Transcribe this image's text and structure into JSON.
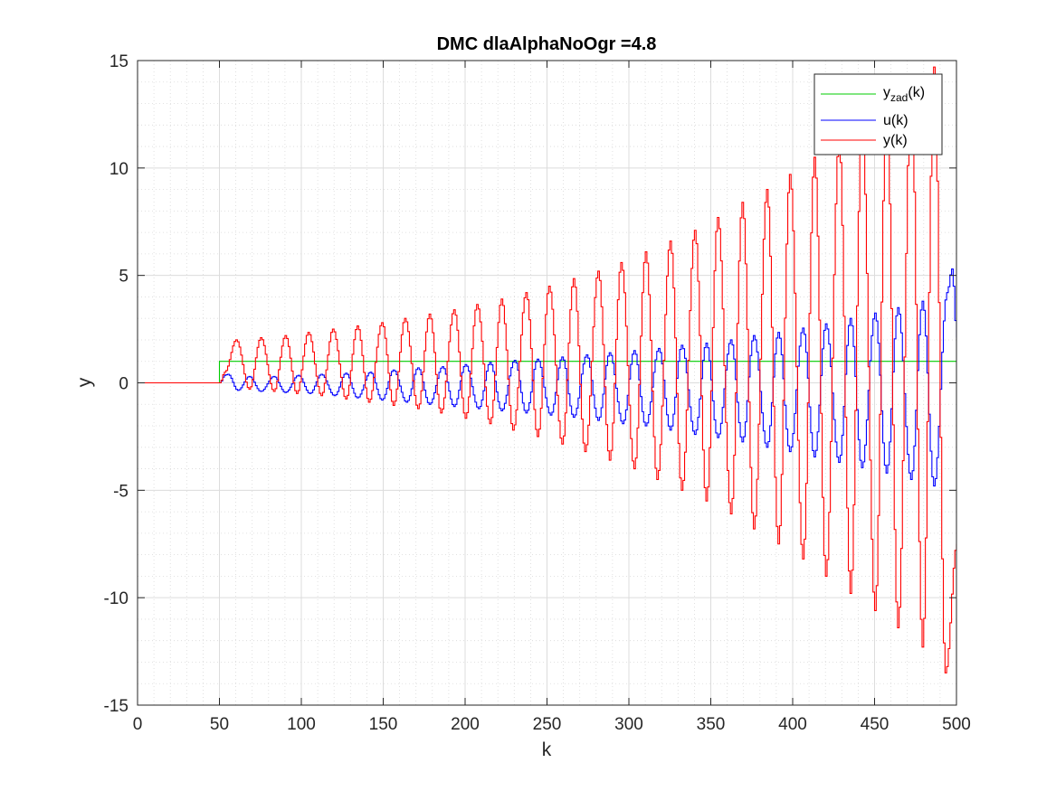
{
  "chart_data": {
    "type": "line",
    "title": "DMC dlaAlphaNoOgr =4.8",
    "xlabel": "k",
    "ylabel": "y",
    "xlim": [
      0,
      500
    ],
    "ylim": [
      -15,
      15
    ],
    "xticks": [
      0,
      50,
      100,
      150,
      200,
      250,
      300,
      350,
      400,
      450,
      500
    ],
    "yticks": [
      -15,
      -10,
      -5,
      0,
      5,
      10,
      15
    ],
    "xticklabels": [
      "0",
      "50",
      "100",
      "150",
      "200",
      "250",
      "300",
      "350",
      "400",
      "450",
      "500"
    ],
    "yticklabels": [
      "-15",
      "-10",
      "-5",
      "0",
      "5",
      "10",
      "15"
    ],
    "grid": "major and minor",
    "legend_position": "top-right",
    "series": [
      {
        "name": "y_zad(k)",
        "legend_main": "y",
        "legend_sub": "zad",
        "legend_suffix": "(k)",
        "color": "#00cc00",
        "points": [
          [
            0,
            0
          ],
          [
            50,
            0
          ],
          [
            50,
            1
          ],
          [
            500,
            1
          ]
        ]
      },
      {
        "name": "u(k)",
        "legend_main": "u(k)",
        "color": "#0000ff",
        "signal": "stepped oscillation starting at k=50, period about 14.7, centered near 0, growing amplitude",
        "points": [
          [
            50,
            0
          ],
          [
            53,
            0.35
          ],
          [
            55,
            0.4
          ],
          [
            61,
            -0.35
          ],
          [
            68,
            0.3
          ],
          [
            75,
            -0.4
          ],
          [
            83,
            0.3
          ],
          [
            90,
            -0.45
          ],
          [
            98,
            0.35
          ],
          [
            105,
            -0.5
          ],
          [
            112,
            0.4
          ],
          [
            120,
            -0.6
          ],
          [
            127,
            0.45
          ],
          [
            134,
            -0.7
          ],
          [
            142,
            0.5
          ],
          [
            149,
            -0.8
          ],
          [
            156,
            0.6
          ],
          [
            164,
            -0.9
          ],
          [
            171,
            0.7
          ],
          [
            178,
            -1.0
          ],
          [
            186,
            0.75
          ],
          [
            193,
            -1.1
          ],
          [
            200,
            0.85
          ],
          [
            208,
            -1.2
          ],
          [
            215,
            0.95
          ],
          [
            222,
            -1.3
          ],
          [
            230,
            1.05
          ],
          [
            237,
            -1.4
          ],
          [
            244,
            1.1
          ],
          [
            252,
            -1.5
          ],
          [
            259,
            1.2
          ],
          [
            266,
            -1.6
          ],
          [
            274,
            1.3
          ],
          [
            281,
            -1.75
          ],
          [
            288,
            1.4
          ],
          [
            296,
            -1.9
          ],
          [
            303,
            1.5
          ],
          [
            310,
            -2.0
          ],
          [
            318,
            1.6
          ],
          [
            325,
            -2.2
          ],
          [
            332,
            1.75
          ],
          [
            340,
            -2.4
          ],
          [
            347,
            1.85
          ],
          [
            354,
            -2.55
          ],
          [
            362,
            2.0
          ],
          [
            369,
            -2.75
          ],
          [
            376,
            2.2
          ],
          [
            384,
            -3.0
          ],
          [
            391,
            2.35
          ],
          [
            398,
            -3.2
          ],
          [
            406,
            2.55
          ],
          [
            413,
            -3.45
          ],
          [
            420,
            2.75
          ],
          [
            428,
            -3.7
          ],
          [
            435,
            3.0
          ],
          [
            442,
            -3.95
          ],
          [
            450,
            3.25
          ],
          [
            457,
            -4.2
          ],
          [
            464,
            3.5
          ],
          [
            472,
            -4.5
          ],
          [
            479,
            3.8
          ],
          [
            486,
            -4.8
          ],
          [
            494,
            4.2
          ],
          [
            497,
            5.3
          ],
          [
            500,
            2.1
          ]
        ]
      },
      {
        "name": "y(k)",
        "legend_main": "y(k)",
        "color": "#ff0000",
        "signal": "stepped oscillation starting at k=50, period about 14.7, centered near 1, growing amplitude",
        "points": [
          [
            0,
            0
          ],
          [
            50,
            0
          ],
          [
            53,
            0.5
          ],
          [
            60,
            2.0
          ],
          [
            68,
            -0.3
          ],
          [
            75,
            2.1
          ],
          [
            83,
            -0.4
          ],
          [
            90,
            2.2
          ],
          [
            97,
            -0.5
          ],
          [
            104,
            2.35
          ],
          [
            112,
            -0.6
          ],
          [
            119,
            2.5
          ],
          [
            127,
            -0.75
          ],
          [
            134,
            2.65
          ],
          [
            141,
            -0.9
          ],
          [
            149,
            2.8
          ],
          [
            156,
            -1.05
          ],
          [
            163,
            3.0
          ],
          [
            171,
            -1.2
          ],
          [
            178,
            3.2
          ],
          [
            185,
            -1.4
          ],
          [
            193,
            3.4
          ],
          [
            200,
            -1.65
          ],
          [
            207,
            3.65
          ],
          [
            215,
            -1.9
          ],
          [
            222,
            3.9
          ],
          [
            229,
            -2.2
          ],
          [
            237,
            4.2
          ],
          [
            244,
            -2.5
          ],
          [
            251,
            4.5
          ],
          [
            259,
            -2.85
          ],
          [
            266,
            4.85
          ],
          [
            273,
            -3.2
          ],
          [
            281,
            5.2
          ],
          [
            288,
            -3.6
          ],
          [
            295,
            5.6
          ],
          [
            303,
            -4.0
          ],
          [
            310,
            6.1
          ],
          [
            317,
            -4.5
          ],
          [
            325,
            6.6
          ],
          [
            332,
            -5.0
          ],
          [
            340,
            7.1
          ],
          [
            347,
            -5.5
          ],
          [
            354,
            7.7
          ],
          [
            362,
            -6.1
          ],
          [
            369,
            8.4
          ],
          [
            376,
            -6.8
          ],
          [
            384,
            9.0
          ],
          [
            391,
            -7.5
          ],
          [
            398,
            9.7
          ],
          [
            406,
            -8.2
          ],
          [
            413,
            10.5
          ],
          [
            420,
            -9.0
          ],
          [
            428,
            11.3
          ],
          [
            435,
            -9.8
          ],
          [
            442,
            12.1
          ],
          [
            450,
            -10.6
          ],
          [
            457,
            12.9
          ],
          [
            464,
            -11.4
          ],
          [
            472,
            13.8
          ],
          [
            479,
            -12.3
          ],
          [
            486,
            14.7
          ],
          [
            493,
            -13.5
          ],
          [
            500,
            -7.5
          ]
        ]
      }
    ]
  }
}
